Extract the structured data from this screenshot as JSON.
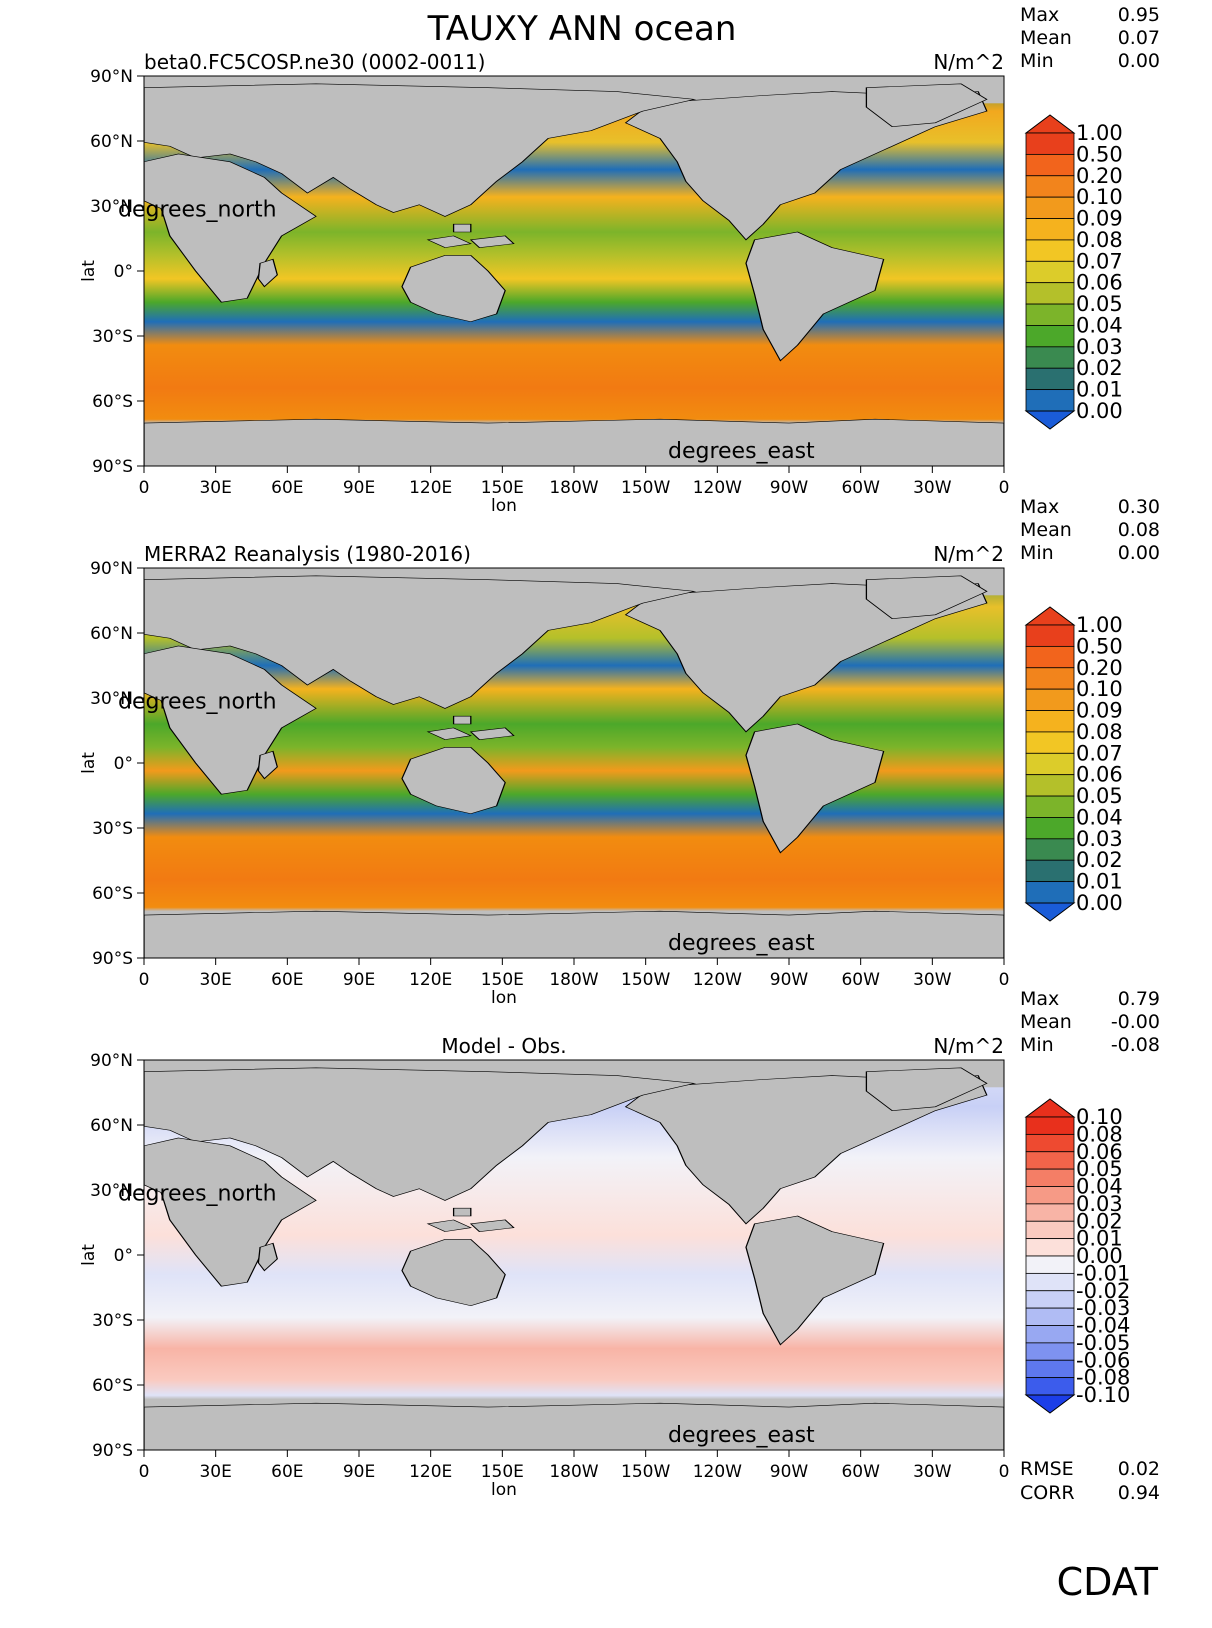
{
  "figure": {
    "title": "TAUXY ANN ocean",
    "axis": {
      "lat_ticks": [
        "90°N",
        "60°N",
        "30°N",
        "0°",
        "30°S",
        "60°S",
        "90°S"
      ],
      "lon_ticks": [
        "0",
        "30E",
        "60E",
        "90E",
        "120E",
        "150E",
        "180W",
        "150W",
        "120W",
        "90W",
        "60W",
        "30W",
        "0"
      ],
      "xlabel": "lon",
      "ylabel": "lat",
      "lat_units_label": "degrees_north",
      "lon_units_label": "degrees_east"
    },
    "colors": {
      "land": "#bebebe",
      "ocean_low": "#1a6bd8",
      "ocean_high": "#f28c0f",
      "diff_pos": "#e8402a",
      "diff_neg": "#2a55e8"
    },
    "panels": [
      {
        "subtitle": "beta0.FC5COSP.ne30 (0002-0011)",
        "units": "N/m^2",
        "stats": [
          {
            "label": "Max",
            "value": "0.95"
          },
          {
            "label": "Mean",
            "value": "0.07"
          },
          {
            "label": "Min",
            "value": "0.00"
          }
        ],
        "colorbar_labels": [
          "1.00",
          "0.50",
          "0.20",
          "0.10",
          "0.09",
          "0.08",
          "0.07",
          "0.06",
          "0.05",
          "0.04",
          "0.03",
          "0.02",
          "0.01",
          "0.00"
        ]
      },
      {
        "subtitle": "MERRA2 Reanalysis (1980-2016)",
        "units": "N/m^2",
        "stats": [
          {
            "label": "Max",
            "value": "0.30"
          },
          {
            "label": "Mean",
            "value": "0.08"
          },
          {
            "label": "Min",
            "value": "0.00"
          }
        ],
        "colorbar_labels": [
          "1.00",
          "0.50",
          "0.20",
          "0.10",
          "0.09",
          "0.08",
          "0.07",
          "0.06",
          "0.05",
          "0.04",
          "0.03",
          "0.02",
          "0.01",
          "0.00"
        ]
      },
      {
        "subtitle": "Model - Obs.",
        "units": "N/m^2",
        "stats": [
          {
            "label": "Max",
            "value": "0.79"
          },
          {
            "label": "Mean",
            "value": "-0.00"
          },
          {
            "label": "Min",
            "value": "-0.08"
          }
        ],
        "colorbar_labels": [
          "0.10",
          "0.08",
          "0.06",
          "0.05",
          "0.04",
          "0.03",
          "0.02",
          "0.01",
          "0.00",
          "-0.01",
          "-0.02",
          "-0.03",
          "-0.04",
          "-0.05",
          "-0.06",
          "-0.08",
          "-0.10"
        ],
        "rmse": {
          "label": "RMSE",
          "value": "0.02"
        },
        "corr": {
          "label": "CORR",
          "value": "0.94"
        }
      }
    ],
    "colorbar_colors_abs": [
      "#e8401c",
      "#f2641c",
      "#f2841c",
      "#f29a1c",
      "#f5b21e",
      "#f2c624",
      "#dccc2a",
      "#b4c02a",
      "#7cb42a",
      "#4ca82a",
      "#3a8a50",
      "#2a7070",
      "#1f6eb8",
      "#1a5cd8"
    ],
    "colorbar_colors_diff": [
      "#e8301c",
      "#ee4a30",
      "#f2644a",
      "#f47e66",
      "#f69a86",
      "#f8b4a6",
      "#facac0",
      "#fce0da",
      "#f2f2f8",
      "#dfe3f8",
      "#c8d0f6",
      "#b0bcf4",
      "#98a8f2",
      "#7e92f0",
      "#5e78ee",
      "#3c5cec",
      "#1c3ee8"
    ],
    "logo": "CDAT"
  }
}
